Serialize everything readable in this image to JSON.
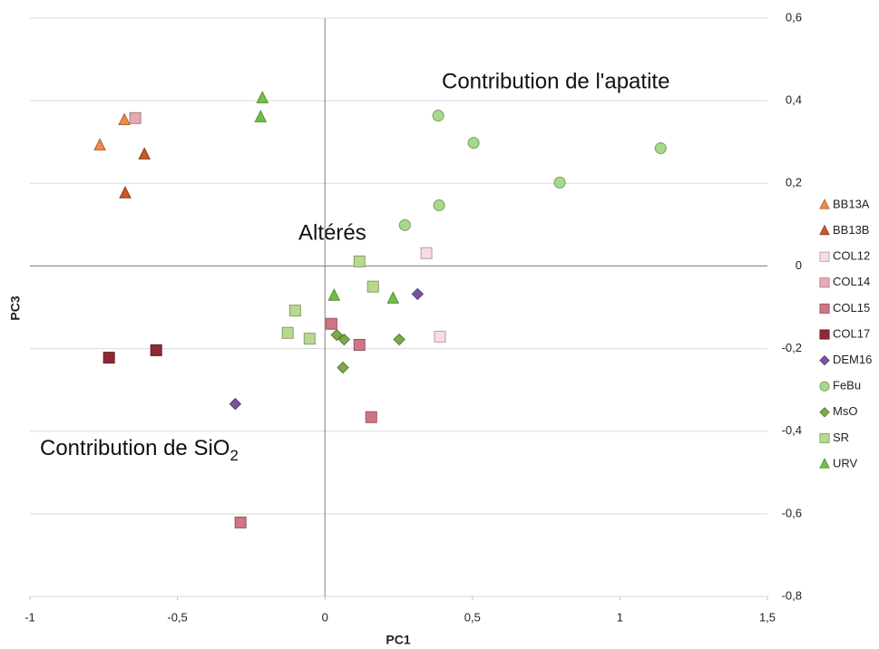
{
  "chart_data": {
    "type": "scatter",
    "x_label": "PC1",
    "y_label": "PC3",
    "xlim": [
      -1,
      1.5
    ],
    "ylim": [
      -0.8,
      0.6
    ],
    "xticks": [
      -1,
      {
        "value": -0.5,
        "label": "-0,5"
      },
      0,
      {
        "value": 0.5,
        "label": "0,5"
      },
      1,
      {
        "value": 1.5,
        "label": "1,5"
      }
    ],
    "yticks": [
      {
        "value": 0.6,
        "label": "0,6"
      },
      {
        "value": 0.4,
        "label": "0,4"
      },
      {
        "value": 0.2,
        "label": "0,2"
      },
      0,
      {
        "value": -0.2,
        "label": "-0,2"
      },
      {
        "value": -0.4,
        "label": "-0,4"
      },
      {
        "value": -0.6,
        "label": "-0,6"
      },
      {
        "value": -0.8,
        "label": "-0,8"
      }
    ],
    "grid": true,
    "legend": "right",
    "annotations": [
      {
        "text": "Contribution de l'apatite"
      },
      {
        "text": "Altérés"
      },
      {
        "text": "Contribution de SiO",
        "sub": "2"
      }
    ],
    "series": [
      {
        "name": "BB13A",
        "color": "#f08a45",
        "marker": "triangle",
        "x": [
          -0.68,
          -0.763
        ],
        "values": [
          0.353,
          0.292
        ]
      },
      {
        "name": "BB13B",
        "color": "#c8582a",
        "marker": "triangle",
        "x": [
          -0.612,
          -0.677
        ],
        "values": [
          0.27,
          0.176
        ]
      },
      {
        "name": "COL12",
        "color": "#f7dde2",
        "marker": "square",
        "x": [
          0.344,
          0.39
        ],
        "values": [
          0.031,
          -0.171
        ]
      },
      {
        "name": "COL14",
        "color": "#eaa8b5",
        "marker": "square",
        "x": [
          -0.643
        ],
        "values": [
          0.358
        ]
      },
      {
        "name": "COL15",
        "color": "#d07585",
        "marker": "square",
        "x": [
          0.022,
          0.117,
          0.157,
          -0.286
        ],
        "values": [
          -0.14,
          -0.191,
          -0.366,
          -0.621
        ]
      },
      {
        "name": "COL17",
        "color": "#8e2a35",
        "marker": "square",
        "x": [
          -0.732,
          -0.572
        ],
        "values": [
          -0.222,
          -0.204
        ]
      },
      {
        "name": "DEM16",
        "color": "#7b54a0",
        "marker": "diamond",
        "x": [
          0.314,
          -0.304
        ],
        "values": [
          -0.068,
          -0.334
        ]
      },
      {
        "name": "FeBu",
        "color": "#a8d88a",
        "marker": "circle",
        "x": [
          0.384,
          0.504,
          1.138,
          0.796,
          0.387,
          0.271
        ],
        "values": [
          0.364,
          0.298,
          0.285,
          0.202,
          0.147,
          0.099
        ]
      },
      {
        "name": "MsO",
        "color": "#7fa84a",
        "marker": "diamond",
        "x": [
          0.04,
          0.065,
          0.252,
          0.061
        ],
        "values": [
          -0.167,
          -0.178,
          -0.178,
          -0.246
        ]
      },
      {
        "name": "SR",
        "color": "#b9d98f",
        "marker": "square",
        "x": [
          0.117,
          0.163,
          -0.101,
          -0.126,
          -0.052
        ],
        "values": [
          0.011,
          -0.05,
          -0.108,
          -0.162,
          -0.176
        ]
      },
      {
        "name": "URV",
        "color": "#72c048",
        "marker": "triangle",
        "x": [
          -0.212,
          -0.218,
          0.031,
          0.231
        ],
        "values": [
          0.406,
          0.36,
          -0.072,
          -0.079
        ]
      }
    ]
  }
}
